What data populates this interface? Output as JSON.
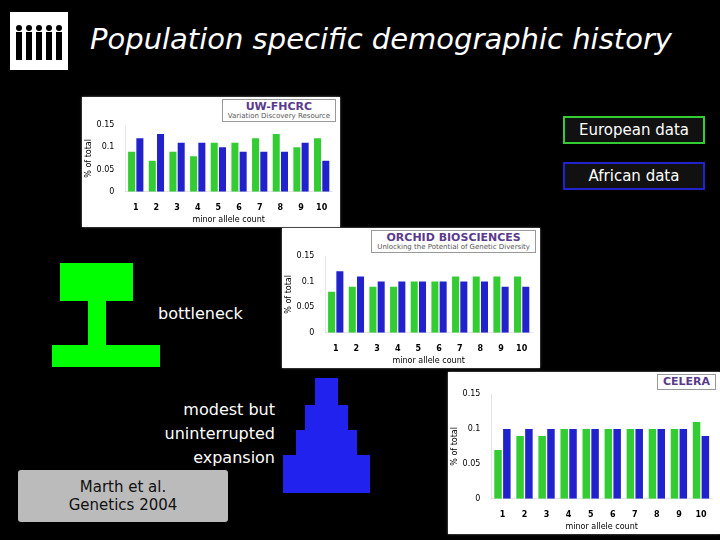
{
  "slide": {
    "title": "Population specific demographic history",
    "annotations": [
      "bottleneck",
      [
        "modest but",
        "uninterrupted",
        "expansion"
      ]
    ],
    "citation": [
      "Marth et al.",
      "Genetics 2004"
    ]
  },
  "chart_data": [
    {
      "type": "bar",
      "title": "UW-FHCRC",
      "subtitle": "Variation Discovery Resource",
      "x_label": "minor allele count",
      "y_label": "% of total",
      "categories": [
        1,
        2,
        3,
        4,
        5,
        6,
        7,
        8,
        9,
        10
      ],
      "series": [
        {
          "name": "European data",
          "color": "#33cc33",
          "values": [
            0.09,
            0.07,
            0.09,
            0.08,
            0.11,
            0.11,
            0.12,
            0.13,
            0.1,
            0.12
          ]
        },
        {
          "name": "African data",
          "color": "#2222cc",
          "values": [
            0.12,
            0.13,
            0.11,
            0.11,
            0.1,
            0.09,
            0.09,
            0.09,
            0.11,
            0.07
          ]
        }
      ],
      "ylim": [
        0,
        0.15
      ],
      "yticks": [
        0,
        0.05,
        0.1,
        0.15
      ],
      "grid": false
    },
    {
      "type": "bar",
      "title": "ORCHID BIOSCIENCES",
      "subtitle": "Unlocking the Potential of Genetic Diversity",
      "x_label": "minor allele count",
      "y_label": "% of total",
      "categories": [
        1,
        2,
        3,
        4,
        5,
        6,
        7,
        8,
        9,
        10
      ],
      "series": [
        {
          "name": "European data",
          "color": "#33cc33",
          "values": [
            0.08,
            0.09,
            0.09,
            0.09,
            0.1,
            0.1,
            0.11,
            0.11,
            0.11,
            0.11
          ]
        },
        {
          "name": "African data",
          "color": "#2222cc",
          "values": [
            0.12,
            0.11,
            0.1,
            0.1,
            0.1,
            0.1,
            0.1,
            0.1,
            0.09,
            0.09
          ]
        }
      ],
      "ylim": [
        0,
        0.15
      ],
      "yticks": [
        0,
        0.05,
        0.1,
        0.15
      ],
      "grid": false
    },
    {
      "type": "bar",
      "title": "CELERA",
      "x_label": "minor allele count",
      "y_label": "% of total",
      "categories": [
        1,
        2,
        3,
        4,
        5,
        6,
        7,
        8,
        9,
        10
      ],
      "series": [
        {
          "name": "European data",
          "color": "#33cc33",
          "values": [
            0.07,
            0.09,
            0.09,
            0.1,
            0.1,
            0.1,
            0.1,
            0.1,
            0.1,
            0.11
          ]
        },
        {
          "name": "African data",
          "color": "#2222cc",
          "values": [
            0.1,
            0.1,
            0.1,
            0.1,
            0.1,
            0.1,
            0.1,
            0.1,
            0.1,
            0.09
          ]
        }
      ],
      "ylim": [
        0,
        0.15
      ],
      "yticks": [
        0,
        0.05,
        0.1,
        0.15
      ],
      "grid": false
    }
  ]
}
